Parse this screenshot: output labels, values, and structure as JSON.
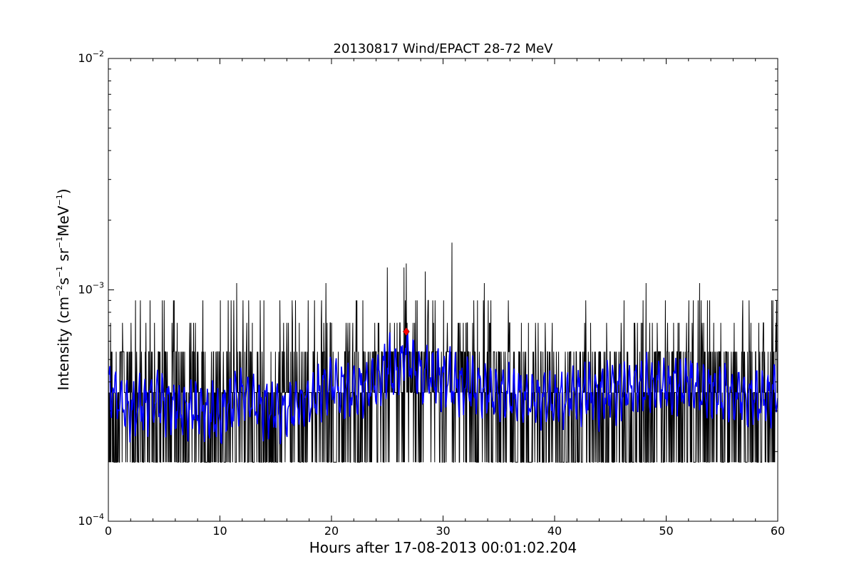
{
  "chart_data": {
    "type": "line",
    "title": "20130817 Wind/EPACT 28-72 MeV",
    "xlabel": "Hours after 17-08-2013 00:01:02.204",
    "ylabel": {
      "prefix": "Intensity (cm",
      "exp1": "−2",
      "part2": "s",
      "exp2": "−1",
      "part3": " sr",
      "exp3": "−1",
      "part4": "MeV",
      "exp4": "−1",
      "suffix": ")"
    },
    "xlim": [
      0,
      60
    ],
    "ylim": [
      0.0001,
      0.01
    ],
    "yscale": "log",
    "grid": false,
    "x_ticks": [
      {
        "value": 0,
        "label": "0"
      },
      {
        "value": 10,
        "label": "10"
      },
      {
        "value": 20,
        "label": "20"
      },
      {
        "value": 30,
        "label": "30"
      },
      {
        "value": 40,
        "label": "40"
      },
      {
        "value": 50,
        "label": "50"
      },
      {
        "value": 60,
        "label": "60"
      }
    ],
    "y_ticks": [
      {
        "value": 0.0001,
        "base": "10",
        "exp": "−4"
      },
      {
        "value": 0.001,
        "base": "10",
        "exp": "−3"
      },
      {
        "value": 0.01,
        "base": "10",
        "exp": "−2"
      }
    ],
    "series": [
      {
        "kind": "raw",
        "color": "#000000",
        "levels": [
          0.00018,
          0.00036,
          0.00054,
          0.00072,
          0.0009,
          0.00107
        ],
        "spikes": [
          {
            "x": 11.5,
            "y": 0.00107
          },
          {
            "x": 19.5,
            "y": 0.00107
          },
          {
            "x": 25.0,
            "y": 0.00125
          },
          {
            "x": 26.5,
            "y": 0.00125
          },
          {
            "x": 26.7,
            "y": 0.0013
          },
          {
            "x": 28.4,
            "y": 0.0012
          },
          {
            "x": 30.8,
            "y": 0.0016
          },
          {
            "x": 33.7,
            "y": 0.00107
          },
          {
            "x": 48.2,
            "y": 0.00107
          },
          {
            "x": 53.0,
            "y": 0.00107
          },
          {
            "x": 59.9,
            "y": 0.0009
          }
        ]
      },
      {
        "kind": "smoothed",
        "color": "#0000ff",
        "x": [
          0,
          2,
          4,
          6,
          8,
          10,
          12,
          14,
          16,
          18,
          20,
          22,
          24,
          25,
          26,
          26.7,
          28,
          30,
          32,
          34,
          36,
          38,
          40,
          42,
          44,
          46,
          48,
          50,
          52,
          54,
          56,
          58,
          60
        ],
        "y": [
          0.00038,
          0.0003,
          0.00034,
          0.00031,
          0.0003,
          0.00029,
          0.00036,
          0.00031,
          0.0003,
          0.00033,
          0.0004,
          0.00036,
          0.0004,
          0.00047,
          0.00044,
          0.00055,
          0.00043,
          0.00042,
          0.00038,
          0.00036,
          0.00035,
          0.00034,
          0.00033,
          0.00036,
          0.00035,
          0.00037,
          0.00039,
          0.00038,
          0.0004,
          0.00036,
          0.00035,
          0.00034,
          0.00036
        ]
      }
    ],
    "marker": {
      "shape": "diamond",
      "color": "#ff0000",
      "x": 26.7,
      "y": 0.00066
    }
  }
}
